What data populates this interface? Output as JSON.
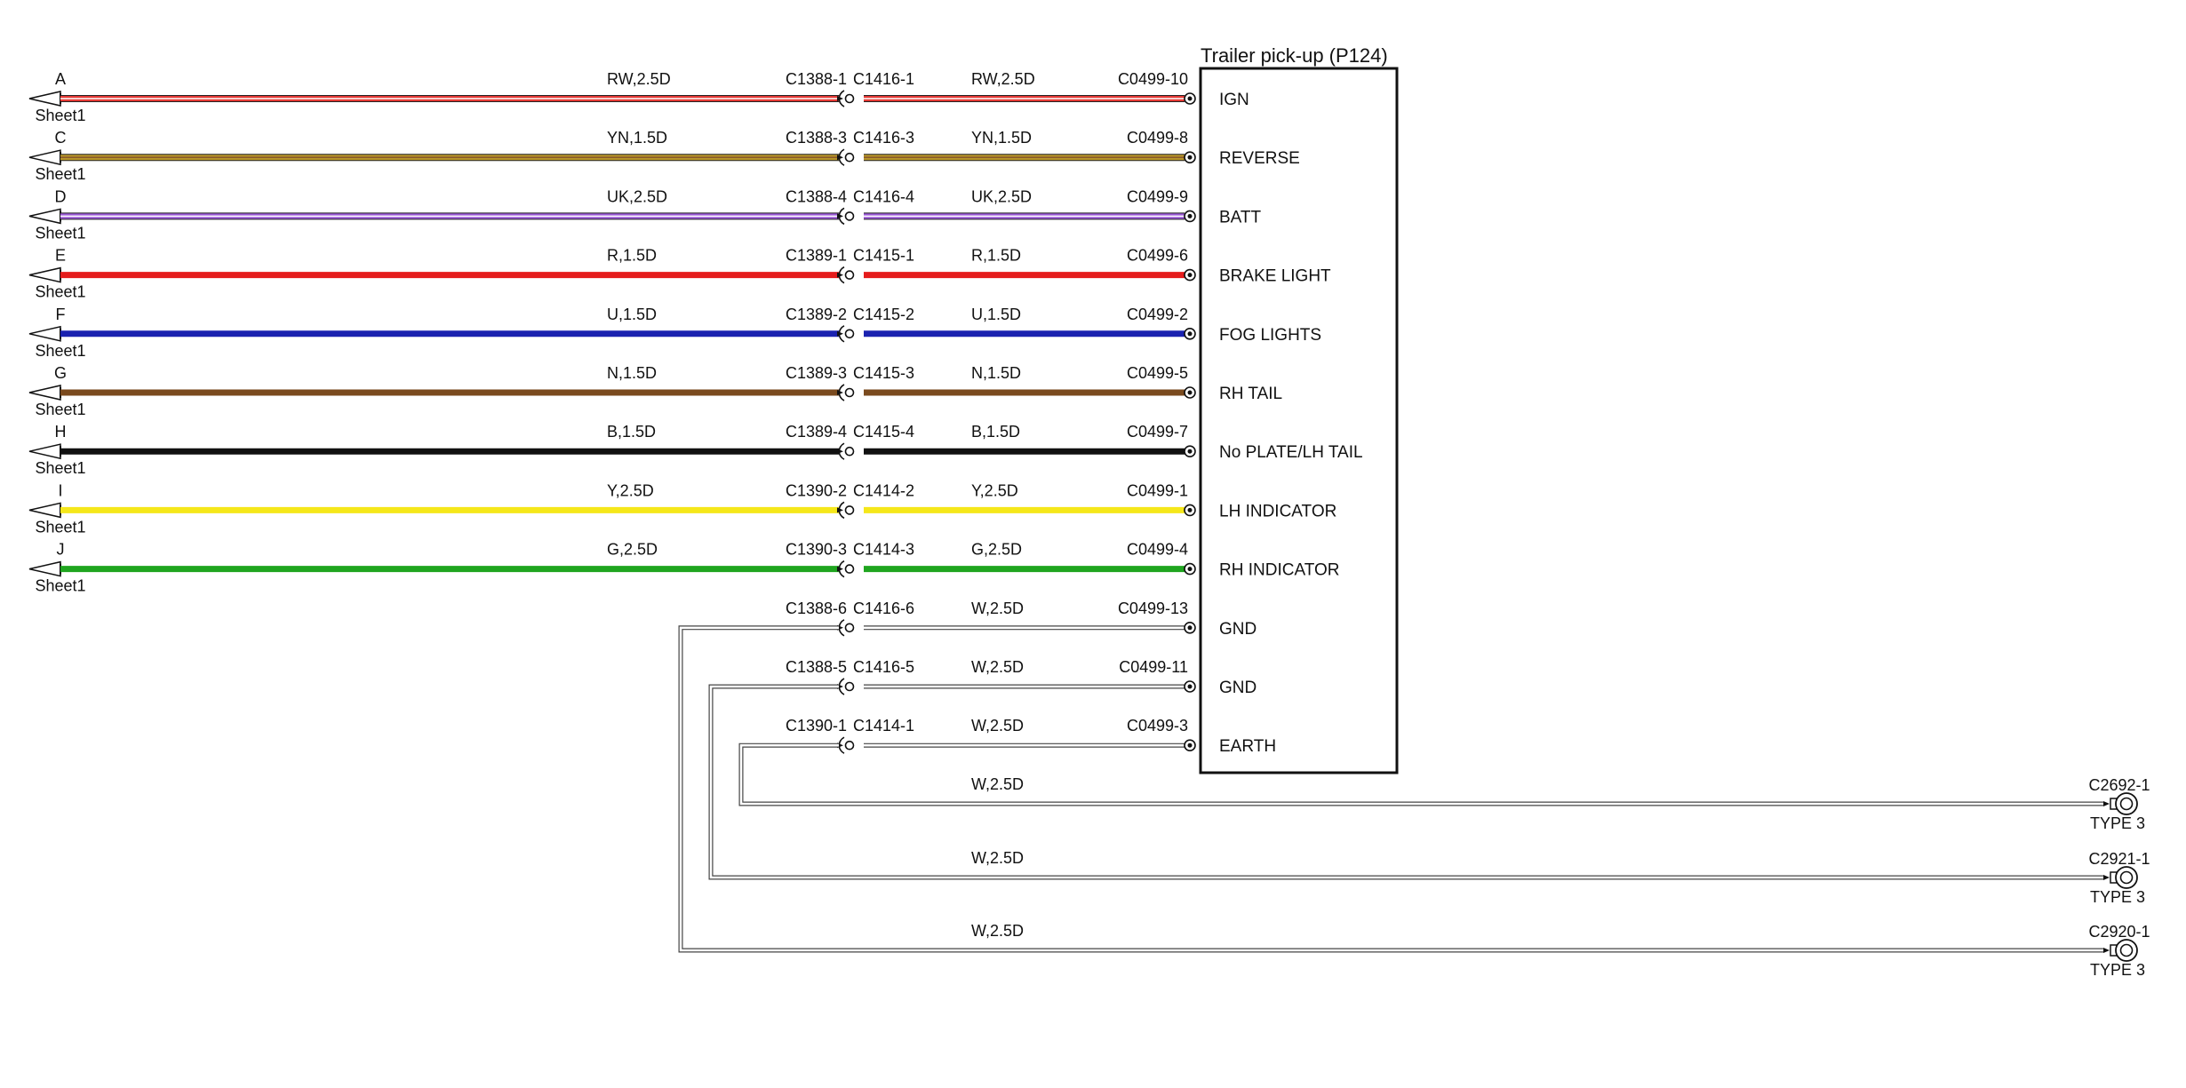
{
  "title": "Trailer pick-up (P124)",
  "circuits": [
    {
      "arrow": "A",
      "sheet": "Sheet1",
      "wire_left": "RW,2.5D",
      "conn_a": "C1388-1",
      "conn_b": "C1416-1",
      "wire_right": "RW,2.5D",
      "pin": "C0499-10",
      "func": "IGN",
      "color": "#e53935",
      "stripe": "#ffffff"
    },
    {
      "arrow": "C",
      "sheet": "Sheet1",
      "wire_left": "YN,1.5D",
      "conn_a": "C1388-3",
      "conn_b": "C1416-3",
      "wire_right": "YN,1.5D",
      "pin": "C0499-8",
      "func": "REVERSE",
      "color": "#b8962a",
      "stripe": "#8a5a2b"
    },
    {
      "arrow": "D",
      "sheet": "Sheet1",
      "wire_left": "UK,2.5D",
      "conn_a": "C1388-4",
      "conn_b": "C1416-4",
      "wire_right": "UK,2.5D",
      "pin": "C0499-9",
      "func": "BATT",
      "color": "#9b59d6",
      "stripe": "#ffffff"
    },
    {
      "arrow": "E",
      "sheet": "Sheet1",
      "wire_left": "R,1.5D",
      "conn_a": "C1389-1",
      "conn_b": "C1415-1",
      "wire_right": "R,1.5D",
      "pin": "C0499-6",
      "func": "BRAKE LIGHT",
      "color": "#e51c1c",
      "stripe": ""
    },
    {
      "arrow": "F",
      "sheet": "Sheet1",
      "wire_left": "U,1.5D",
      "conn_a": "C1389-2",
      "conn_b": "C1415-2",
      "wire_right": "U,1.5D",
      "pin": "C0499-2",
      "func": "FOG LIGHTS",
      "color": "#1a22b0",
      "stripe": ""
    },
    {
      "arrow": "G",
      "sheet": "Sheet1",
      "wire_left": "N,1.5D",
      "conn_a": "C1389-3",
      "conn_b": "C1415-3",
      "wire_right": "N,1.5D",
      "pin": "C0499-5",
      "func": "RH TAIL",
      "color": "#7a4a1e",
      "stripe": ""
    },
    {
      "arrow": "H",
      "sheet": "Sheet1",
      "wire_left": "B,1.5D",
      "conn_a": "C1389-4",
      "conn_b": "C1415-4",
      "wire_right": "B,1.5D",
      "pin": "C0499-7",
      "func": "No PLATE/LH TAIL",
      "color": "#111111",
      "stripe": ""
    },
    {
      "arrow": "I",
      "sheet": "Sheet1",
      "wire_left": "Y,2.5D",
      "conn_a": "C1390-2",
      "conn_b": "C1414-2",
      "wire_right": "Y,2.5D",
      "pin": "C0499-1",
      "func": "LH INDICATOR",
      "color": "#f5e71a",
      "stripe": ""
    },
    {
      "arrow": "J",
      "sheet": "Sheet1",
      "wire_left": "G,2.5D",
      "conn_a": "C1390-3",
      "conn_b": "C1414-3",
      "wire_right": "G,2.5D",
      "pin": "C0499-4",
      "func": "RH INDICATOR",
      "color": "#1fa51f",
      "stripe": ""
    }
  ],
  "ground_circuits": [
    {
      "conn_a": "C1388-6",
      "conn_b": "C1416-6",
      "wire_right": "W,2.5D",
      "pin": "C0499-13",
      "func": "GND"
    },
    {
      "conn_a": "C1388-5",
      "conn_b": "C1416-5",
      "wire_right": "W,2.5D",
      "pin": "C0499-11",
      "func": "GND"
    },
    {
      "conn_a": "C1390-1",
      "conn_b": "C1414-1",
      "wire_right": "W,2.5D",
      "pin": "C0499-3",
      "func": "EARTH"
    }
  ],
  "ground_points": [
    {
      "wire": "W,2.5D",
      "conn": "C2692-1",
      "type": "TYPE 3"
    },
    {
      "wire": "W,2.5D",
      "conn": "C2921-1",
      "type": "TYPE 3"
    },
    {
      "wire": "W,2.5D",
      "conn": "C2920-1",
      "type": "TYPE 3"
    }
  ]
}
